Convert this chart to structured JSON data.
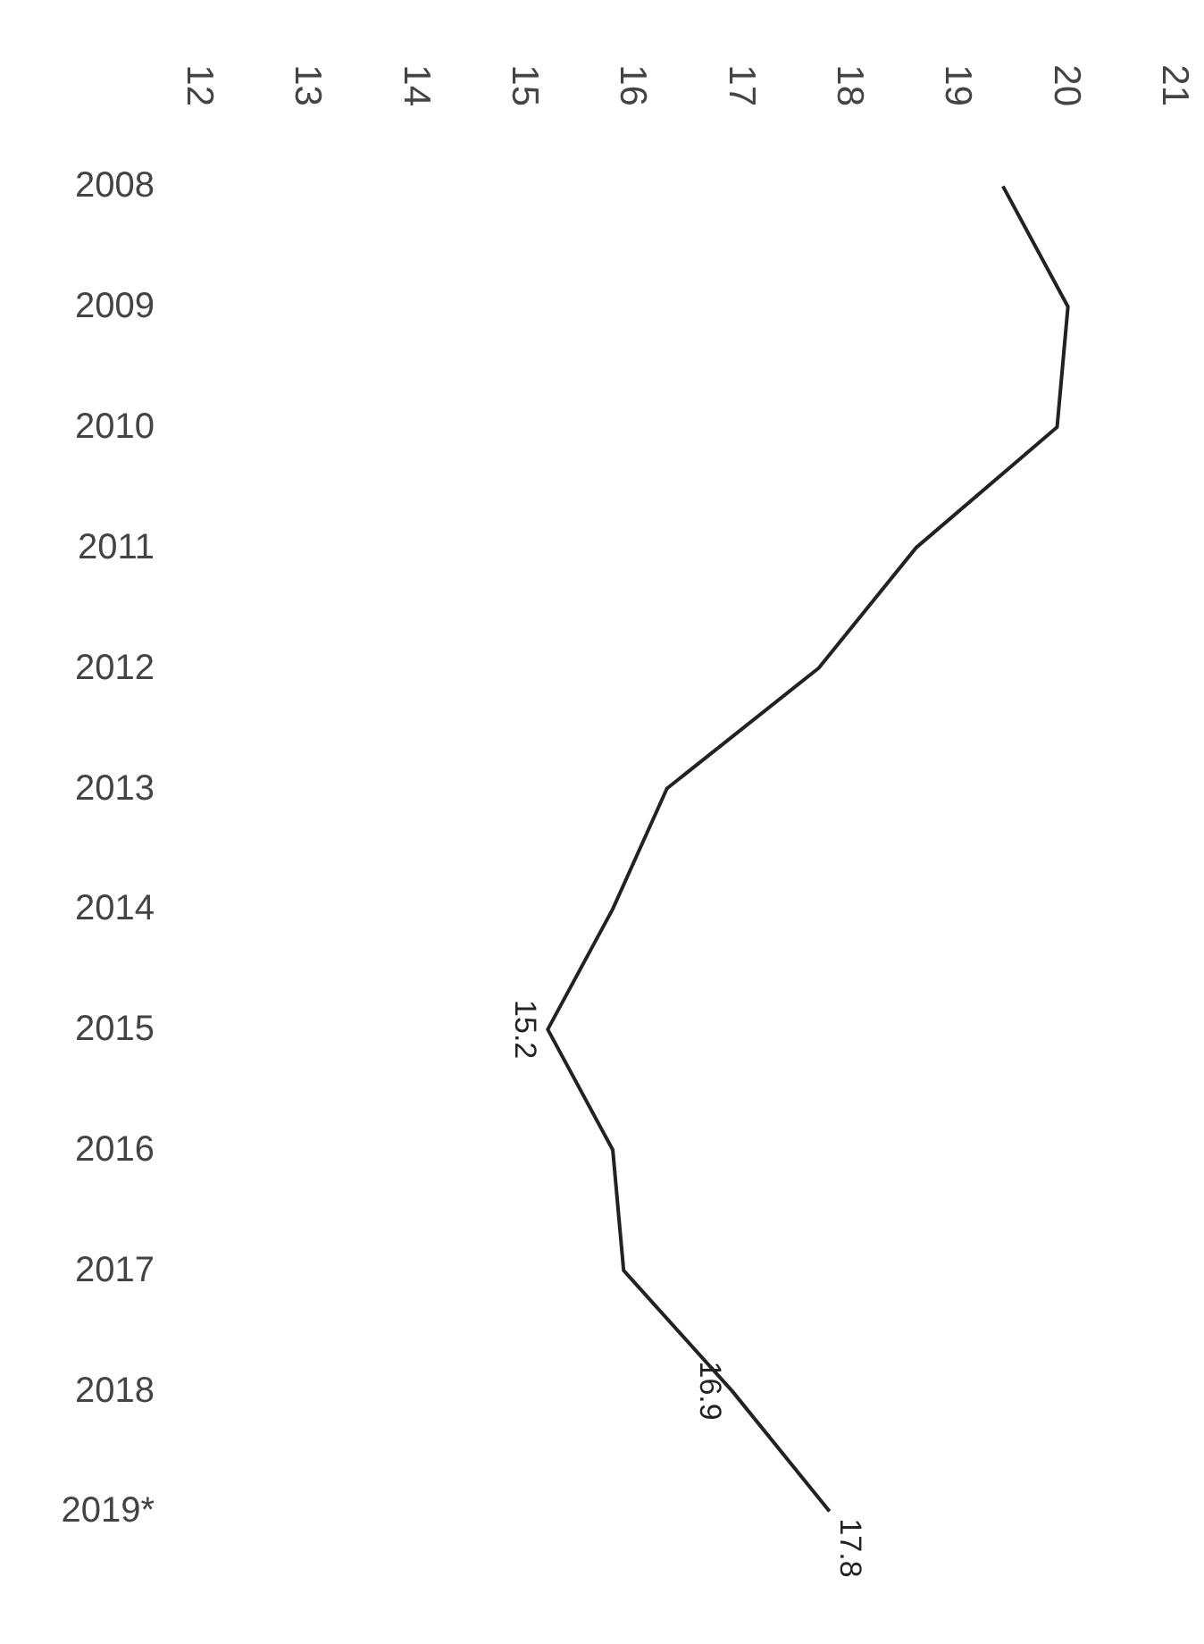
{
  "chart_data": {
    "type": "line",
    "orientation": "horizontal",
    "categories": [
      "2008",
      "2009",
      "2010",
      "2011",
      "2012",
      "2013",
      "2014",
      "2015",
      "2016",
      "2017",
      "2018",
      "2019*"
    ],
    "values": [
      19.4,
      20.0,
      19.9,
      18.6,
      17.7,
      16.3,
      15.8,
      15.2,
      15.8,
      15.9,
      16.9,
      17.8
    ],
    "value_labels": [
      null,
      null,
      null,
      null,
      null,
      null,
      null,
      "15.2",
      null,
      null,
      "16.9",
      "17.8"
    ],
    "color": "#222222",
    "xlim": [
      12,
      21
    ],
    "xticks": [
      12,
      13,
      14,
      15,
      16,
      17,
      18,
      19,
      20,
      21
    ],
    "grid": false
  }
}
